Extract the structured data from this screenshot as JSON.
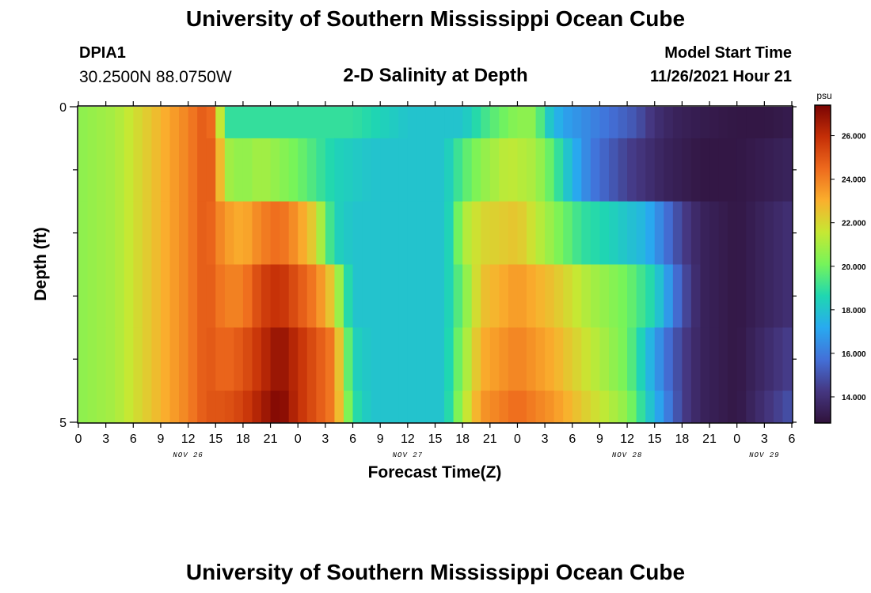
{
  "header": {
    "title": "University of Southern Mississippi Ocean Cube",
    "station": "DPIA1",
    "coords": "30.2500N  88.0750W",
    "subtitle": "2-D Salinity at Depth",
    "model_label": "Model Start Time",
    "model_time": "11/26/2021 Hour 21"
  },
  "footer": {
    "title": "University of Southern Mississippi Ocean Cube"
  },
  "chart_data": {
    "type": "heatmap",
    "xlabel": "Forecast Time(Z)",
    "ylabel": "Depth (ft)",
    "x_tick_labels": [
      "0",
      "3",
      "6",
      "9",
      "12",
      "15",
      "18",
      "21",
      "0",
      "3",
      "6",
      "9",
      "12",
      "15",
      "18",
      "21",
      "0",
      "3",
      "6",
      "9",
      "12",
      "15",
      "18",
      "21",
      "0",
      "3",
      "6"
    ],
    "date_labels": [
      {
        "text": "NOV 26",
        "hour": 12
      },
      {
        "text": "NOV 27",
        "hour": 36
      },
      {
        "text": "NOV 28",
        "hour": 60
      },
      {
        "text": "NOV 29",
        "hour": 75
      }
    ],
    "x_range_hours": [
      0,
      78
    ],
    "y_tick_labels": [
      "0",
      "5"
    ],
    "ylim": [
      0,
      5
    ],
    "depth_levels": 6,
    "colorbar": {
      "unit": "psu",
      "range": [
        12.8,
        27.4
      ],
      "ticks": [
        "14.000",
        "16.000",
        "18.000",
        "20.000",
        "22.000",
        "24.000",
        "26.000"
      ],
      "tick_values": [
        14,
        16,
        18,
        20,
        22,
        24,
        26
      ]
    },
    "series": [
      {
        "name": "level-1",
        "hours": [
          0,
          4,
          8,
          12,
          14,
          15,
          16,
          24,
          30,
          36,
          42,
          45,
          48,
          50,
          51,
          53,
          57,
          61,
          63,
          65,
          68,
          72,
          75,
          78
        ],
        "values": [
          20.5,
          21.0,
          22.5,
          24.0,
          25.0,
          24.0,
          19.0,
          19.0,
          19.0,
          18.0,
          18.0,
          19.5,
          20.5,
          20.5,
          18.5,
          17.0,
          16.0,
          15.0,
          14.0,
          13.5,
          13.2,
          13.0,
          13.0,
          13.2
        ]
      },
      {
        "name": "level-2",
        "hours": [
          0,
          4,
          8,
          12,
          14,
          15,
          16,
          18,
          20,
          24,
          28,
          32,
          36,
          40,
          42,
          44,
          47,
          50,
          52,
          54,
          56,
          60,
          64,
          68,
          72,
          78
        ],
        "values": [
          20.5,
          21.0,
          22.5,
          24.0,
          25.0,
          24.5,
          21.0,
          20.5,
          21.0,
          20.0,
          18.5,
          18.0,
          18.0,
          18.0,
          19.5,
          20.5,
          21.5,
          21.0,
          19.5,
          17.5,
          16.0,
          14.5,
          13.5,
          13.0,
          13.0,
          13.5
        ]
      },
      {
        "name": "level-3",
        "hours": [
          0,
          4,
          8,
          12,
          14,
          16,
          18,
          20,
          22,
          24,
          26,
          27,
          28,
          30,
          32,
          36,
          40,
          41,
          42,
          44,
          48,
          52,
          55,
          58,
          62,
          64,
          66,
          68,
          72,
          78
        ],
        "values": [
          20.5,
          21.0,
          22.5,
          24.0,
          25.0,
          23.5,
          23.0,
          24.0,
          24.5,
          23.5,
          22.0,
          20.0,
          18.5,
          18.0,
          18.0,
          18.0,
          18.0,
          19.0,
          21.0,
          22.0,
          22.5,
          20.5,
          19.0,
          18.5,
          17.5,
          16.0,
          14.5,
          13.5,
          13.0,
          14.0
        ]
      },
      {
        "name": "level-4",
        "hours": [
          0,
          4,
          8,
          12,
          14,
          16,
          18,
          20,
          22,
          24,
          26,
          28,
          29,
          30,
          32,
          36,
          40,
          42,
          44,
          48,
          52,
          56,
          60,
          63,
          66,
          68,
          72,
          78
        ],
        "values": [
          20.5,
          21.0,
          22.5,
          24.0,
          25.0,
          24.0,
          24.0,
          25.5,
          26.0,
          25.0,
          24.0,
          22.0,
          19.5,
          18.0,
          18.0,
          18.0,
          18.0,
          20.0,
          22.5,
          23.5,
          22.5,
          21.0,
          20.0,
          18.5,
          15.0,
          13.5,
          13.0,
          14.0
        ]
      },
      {
        "name": "level-5",
        "hours": [
          0,
          4,
          8,
          12,
          14,
          16,
          18,
          20,
          22,
          24,
          26,
          28,
          29,
          30,
          32,
          36,
          40,
          42,
          44,
          48,
          52,
          56,
          60,
          62,
          64,
          66,
          68,
          72,
          78
        ],
        "values": [
          20.5,
          21.0,
          22.5,
          24.0,
          25.0,
          24.5,
          25.0,
          26.0,
          27.0,
          26.0,
          25.0,
          24.0,
          21.0,
          18.5,
          18.0,
          18.0,
          18.0,
          20.5,
          23.0,
          24.0,
          23.0,
          21.5,
          20.0,
          18.0,
          16.0,
          14.5,
          13.5,
          13.0,
          14.5
        ]
      },
      {
        "name": "level-6",
        "hours": [
          0,
          4,
          8,
          12,
          14,
          16,
          18,
          20,
          22,
          24,
          26,
          28,
          29,
          30,
          32,
          36,
          40,
          42,
          44,
          48,
          52,
          56,
          60,
          62,
          64,
          66,
          68,
          72,
          78
        ],
        "values": [
          20.5,
          21.0,
          22.5,
          24.0,
          25.0,
          25.0,
          25.5,
          26.5,
          27.4,
          26.0,
          25.0,
          24.0,
          21.5,
          19.0,
          18.0,
          18.0,
          18.0,
          21.0,
          23.5,
          24.5,
          23.5,
          22.0,
          20.5,
          18.5,
          16.5,
          14.5,
          13.5,
          13.0,
          15.0
        ]
      }
    ]
  }
}
